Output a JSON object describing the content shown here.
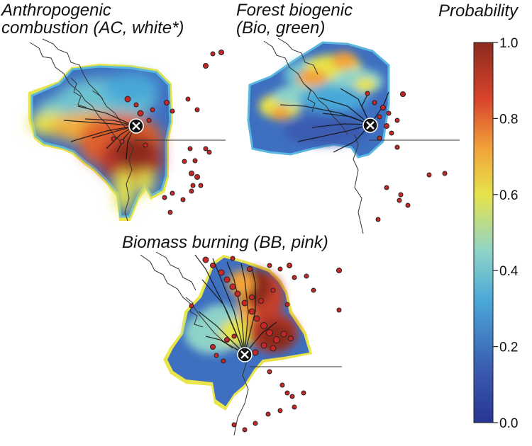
{
  "chart_data": [
    {
      "type": "heatmap",
      "title_line1": "Anthropogenic",
      "title_line2": "combustion (AC, white*)"
    },
    {
      "type": "heatmap",
      "title_line1": "Forest biogenic",
      "title_line2": "(Bio, green)"
    },
    {
      "type": "heatmap",
      "title_line1": "Biomass burning (BB, pink)"
    }
  ],
  "colorbar": {
    "title": "Probability",
    "range": [
      0.0,
      1.0
    ],
    "ticks": [
      "0.0",
      "0.2",
      "0.4",
      "0.6",
      "0.8",
      "1.0"
    ],
    "colors": [
      "#283593",
      "#3a5bb0",
      "#4aa8d8",
      "#8fd3c8",
      "#e6e34b",
      "#f2a33a",
      "#d9442c",
      "#8c2a1e"
    ]
  },
  "marker_color": "#c62828"
}
